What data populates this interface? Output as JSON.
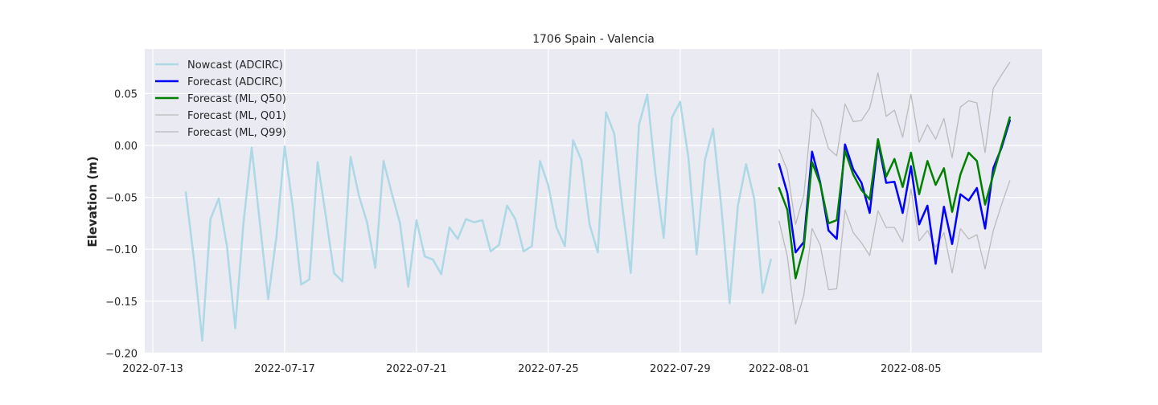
{
  "chart_data": {
    "type": "line",
    "title": "1706 Spain - Valencia",
    "xlabel": "",
    "ylabel": "Elevation (m)",
    "x_ticks": [
      "2022-07-13",
      "2022-07-17",
      "2022-07-21",
      "2022-07-25",
      "2022-07-29",
      "2022-08-01",
      "2022-08-05"
    ],
    "xlim": [
      "2022-07-13",
      "2022-08-08 12:00"
    ],
    "y_ticks": [
      0.05,
      0.0,
      -0.05,
      -0.1,
      -0.15,
      -0.2
    ],
    "y_tick_labels": [
      "0.05",
      "0.00",
      "−0.05",
      "−0.10",
      "−0.15",
      "−0.20"
    ],
    "ylim": [
      -0.2,
      0.09
    ],
    "grid": true,
    "legend_position": "top-left",
    "series": [
      {
        "name": "Nowcast (ADCIRC)",
        "color": "#add8e6",
        "line_width": 2.5,
        "x": [
          "2022-07-14 00:00",
          "2022-07-14 06:00",
          "2022-07-14 12:00",
          "2022-07-14 18:00",
          "2022-07-15 00:00",
          "2022-07-15 06:00",
          "2022-07-15 12:00",
          "2022-07-15 18:00",
          "2022-07-16 00:00",
          "2022-07-16 06:00",
          "2022-07-16 12:00",
          "2022-07-16 18:00",
          "2022-07-17 00:00",
          "2022-07-17 06:00",
          "2022-07-17 12:00",
          "2022-07-17 18:00",
          "2022-07-18 00:00",
          "2022-07-18 06:00",
          "2022-07-18 12:00",
          "2022-07-18 18:00",
          "2022-07-19 00:00",
          "2022-07-19 06:00",
          "2022-07-19 12:00",
          "2022-07-19 18:00",
          "2022-07-20 00:00",
          "2022-07-20 06:00",
          "2022-07-20 12:00",
          "2022-07-20 18:00",
          "2022-07-21 00:00",
          "2022-07-21 06:00",
          "2022-07-21 12:00",
          "2022-07-21 18:00",
          "2022-07-22 00:00",
          "2022-07-22 06:00",
          "2022-07-22 12:00",
          "2022-07-22 18:00",
          "2022-07-23 00:00",
          "2022-07-23 06:00",
          "2022-07-23 12:00",
          "2022-07-23 18:00",
          "2022-07-24 00:00",
          "2022-07-24 06:00",
          "2022-07-24 12:00",
          "2022-07-24 18:00",
          "2022-07-25 00:00",
          "2022-07-25 06:00",
          "2022-07-25 12:00",
          "2022-07-25 18:00",
          "2022-07-26 00:00",
          "2022-07-26 06:00",
          "2022-07-26 12:00",
          "2022-07-26 18:00",
          "2022-07-27 00:00",
          "2022-07-27 06:00",
          "2022-07-27 12:00",
          "2022-07-27 18:00",
          "2022-07-28 00:00",
          "2022-07-28 06:00",
          "2022-07-28 12:00",
          "2022-07-28 18:00",
          "2022-07-29 00:00",
          "2022-07-29 06:00",
          "2022-07-29 12:00",
          "2022-07-29 18:00",
          "2022-07-30 00:00",
          "2022-07-30 06:00",
          "2022-07-30 12:00",
          "2022-07-30 18:00",
          "2022-07-31 00:00",
          "2022-07-31 06:00",
          "2022-07-31 12:00",
          "2022-07-31 18:00"
        ],
        "y": [
          -0.045,
          -0.11,
          -0.188,
          -0.071,
          -0.051,
          -0.097,
          -0.176,
          -0.075,
          -0.002,
          -0.075,
          -0.148,
          -0.088,
          -0.001,
          -0.06,
          -0.134,
          -0.129,
          -0.016,
          -0.068,
          -0.123,
          -0.131,
          -0.011,
          -0.048,
          -0.074,
          -0.118,
          -0.015,
          -0.046,
          -0.075,
          -0.136,
          -0.072,
          -0.107,
          -0.11,
          -0.124,
          -0.079,
          -0.09,
          -0.071,
          -0.074,
          -0.072,
          -0.102,
          -0.096,
          -0.058,
          -0.071,
          -0.102,
          -0.097,
          -0.015,
          -0.039,
          -0.079,
          -0.097,
          0.005,
          -0.014,
          -0.076,
          -0.103,
          0.032,
          0.011,
          -0.06,
          -0.123,
          0.02,
          0.049,
          -0.028,
          -0.089,
          0.027,
          0.042,
          -0.012,
          -0.105,
          -0.014,
          0.016,
          -0.06,
          -0.152,
          -0.058,
          -0.018,
          -0.052,
          -0.142,
          -0.11
        ]
      },
      {
        "name": "Forecast (ADCIRC)",
        "color": "#0000ff",
        "line_width": 2.5,
        "x": [
          "2022-08-01 00:00",
          "2022-08-01 06:00",
          "2022-08-01 12:00",
          "2022-08-01 18:00",
          "2022-08-02 00:00",
          "2022-08-02 06:00",
          "2022-08-02 12:00",
          "2022-08-02 18:00",
          "2022-08-03 00:00",
          "2022-08-03 06:00",
          "2022-08-03 12:00",
          "2022-08-03 18:00",
          "2022-08-04 00:00",
          "2022-08-04 06:00",
          "2022-08-04 12:00",
          "2022-08-04 18:00",
          "2022-08-05 00:00",
          "2022-08-05 06:00",
          "2022-08-05 12:00",
          "2022-08-05 18:00",
          "2022-08-06 00:00",
          "2022-08-06 06:00",
          "2022-08-06 12:00",
          "2022-08-06 18:00",
          "2022-08-07 00:00",
          "2022-08-07 06:00",
          "2022-08-07 12:00",
          "2022-08-07 18:00",
          "2022-08-08 00:00"
        ],
        "y": [
          -0.018,
          -0.046,
          -0.103,
          -0.093,
          -0.006,
          -0.036,
          -0.082,
          -0.09,
          0.001,
          -0.023,
          -0.036,
          -0.065,
          0.004,
          -0.036,
          -0.035,
          -0.065,
          -0.02,
          -0.076,
          -0.058,
          -0.114,
          -0.059,
          -0.095,
          -0.047,
          -0.053,
          -0.041,
          -0.08,
          -0.022,
          -0.002,
          0.024
        ]
      },
      {
        "name": "Forecast (ML, Q50)",
        "color": "#008000",
        "line_width": 2.5,
        "x": [
          "2022-08-01 00:00",
          "2022-08-01 06:00",
          "2022-08-01 12:00",
          "2022-08-01 18:00",
          "2022-08-02 00:00",
          "2022-08-02 06:00",
          "2022-08-02 12:00",
          "2022-08-02 18:00",
          "2022-08-03 00:00",
          "2022-08-03 06:00",
          "2022-08-03 12:00",
          "2022-08-03 18:00",
          "2022-08-04 00:00",
          "2022-08-04 06:00",
          "2022-08-04 12:00",
          "2022-08-04 18:00",
          "2022-08-05 00:00",
          "2022-08-05 06:00",
          "2022-08-05 12:00",
          "2022-08-05 18:00",
          "2022-08-06 00:00",
          "2022-08-06 06:00",
          "2022-08-06 12:00",
          "2022-08-06 18:00",
          "2022-08-07 00:00",
          "2022-08-07 06:00",
          "2022-08-07 12:00",
          "2022-08-07 18:00",
          "2022-08-08 00:00"
        ],
        "y": [
          -0.041,
          -0.062,
          -0.128,
          -0.098,
          -0.016,
          -0.037,
          -0.075,
          -0.072,
          -0.005,
          -0.028,
          -0.043,
          -0.052,
          0.006,
          -0.03,
          -0.013,
          -0.04,
          -0.007,
          -0.047,
          -0.015,
          -0.038,
          -0.022,
          -0.064,
          -0.028,
          -0.007,
          -0.015,
          -0.057,
          -0.028,
          0.0,
          0.027
        ]
      },
      {
        "name": "Forecast (ML, Q01)",
        "color": "#bbbbbb",
        "line_width": 1.3,
        "x": [
          "2022-08-01 00:00",
          "2022-08-01 06:00",
          "2022-08-01 12:00",
          "2022-08-01 18:00",
          "2022-08-02 00:00",
          "2022-08-02 06:00",
          "2022-08-02 12:00",
          "2022-08-02 18:00",
          "2022-08-03 00:00",
          "2022-08-03 06:00",
          "2022-08-03 12:00",
          "2022-08-03 18:00",
          "2022-08-04 00:00",
          "2022-08-04 06:00",
          "2022-08-04 12:00",
          "2022-08-04 18:00",
          "2022-08-05 00:00",
          "2022-08-05 06:00",
          "2022-08-05 12:00",
          "2022-08-05 18:00",
          "2022-08-06 00:00",
          "2022-08-06 06:00",
          "2022-08-06 12:00",
          "2022-08-06 18:00",
          "2022-08-07 00:00",
          "2022-08-07 06:00",
          "2022-08-07 12:00",
          "2022-08-07 18:00",
          "2022-08-08 00:00"
        ],
        "y": [
          -0.073,
          -0.107,
          -0.172,
          -0.144,
          -0.08,
          -0.096,
          -0.139,
          -0.138,
          -0.062,
          -0.084,
          -0.094,
          -0.106,
          -0.063,
          -0.079,
          -0.079,
          -0.093,
          -0.042,
          -0.092,
          -0.082,
          -0.098,
          -0.084,
          -0.123,
          -0.08,
          -0.09,
          -0.086,
          -0.119,
          -0.082,
          -0.057,
          -0.034
        ]
      },
      {
        "name": "Forecast (ML, Q99)",
        "color": "#bbbbbb",
        "line_width": 1.3,
        "x": [
          "2022-08-01 00:00",
          "2022-08-01 06:00",
          "2022-08-01 12:00",
          "2022-08-01 18:00",
          "2022-08-02 00:00",
          "2022-08-02 06:00",
          "2022-08-02 12:00",
          "2022-08-02 18:00",
          "2022-08-03 00:00",
          "2022-08-03 06:00",
          "2022-08-03 12:00",
          "2022-08-03 18:00",
          "2022-08-04 00:00",
          "2022-08-04 06:00",
          "2022-08-04 12:00",
          "2022-08-04 18:00",
          "2022-08-05 00:00",
          "2022-08-05 06:00",
          "2022-08-05 12:00",
          "2022-08-05 18:00",
          "2022-08-06 00:00",
          "2022-08-06 06:00",
          "2022-08-06 12:00",
          "2022-08-06 18:00",
          "2022-08-07 00:00",
          "2022-08-07 06:00",
          "2022-08-07 12:00",
          "2022-08-07 18:00",
          "2022-08-08 00:00"
        ],
        "y": [
          -0.004,
          -0.024,
          -0.076,
          -0.048,
          0.035,
          0.024,
          -0.003,
          -0.01,
          0.04,
          0.023,
          0.024,
          0.036,
          0.07,
          0.028,
          0.034,
          0.008,
          0.049,
          0.003,
          0.02,
          0.006,
          0.026,
          -0.012,
          0.037,
          0.043,
          0.041,
          -0.007,
          0.055,
          0.068,
          0.08
        ]
      }
    ]
  }
}
